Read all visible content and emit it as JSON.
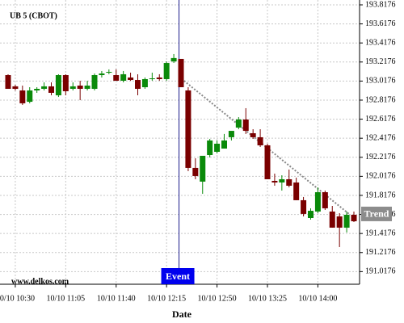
{
  "chart_data": {
    "type": "candlestick",
    "title": "UB 5 (CBOT)",
    "watermark": "www.delkos.com",
    "x_label": "Date",
    "categories": [
      null,
      "10/10 10:30",
      null,
      null,
      null,
      null,
      null,
      null,
      "10/10 11:05",
      null,
      null,
      null,
      null,
      null,
      null,
      "10/10 11:40",
      null,
      null,
      null,
      null,
      null,
      null,
      "10/10 12:15",
      null,
      null,
      null,
      null,
      null,
      null,
      "10/10 12:50",
      null,
      null,
      null,
      null,
      null,
      null,
      "10/10 13:25",
      null,
      null,
      null,
      null,
      null,
      null,
      "10/10 14:00",
      null,
      null,
      null,
      null,
      null
    ],
    "open": [
      193.08,
      192.962,
      192.919,
      192.8,
      192.919,
      192.936,
      192.962,
      192.868,
      193.08,
      192.936,
      192.97,
      192.936,
      192.936,
      193.08,
      193.106,
      193.08,
      193.021,
      193.055,
      193.029,
      192.953,
      193.038,
      193.055,
      193.038,
      193.224,
      193.25,
      192.919,
      192.106,
      191.962,
      192.241,
      192.275,
      192.309,
      192.428,
      192.529,
      192.614,
      192.47,
      192.428,
      192.343,
      191.97,
      191.953,
      191.987,
      191.953,
      191.767,
      191.58,
      191.648,
      191.851,
      191.648,
      191.597,
      191.479,
      191.614
    ],
    "high": [
      193.089,
      192.978,
      192.97,
      192.953,
      192.953,
      193.004,
      193.004,
      193.089,
      193.089,
      193.004,
      193.021,
      193.021,
      193.097,
      193.123,
      193.14,
      193.14,
      193.123,
      193.106,
      193.089,
      193.055,
      193.106,
      193.089,
      193.224,
      193.301,
      193.25,
      192.953,
      192.207,
      192.207,
      192.411,
      192.394,
      192.462,
      192.478,
      192.639,
      192.733,
      192.512,
      192.512,
      192.36,
      192.046,
      192.029,
      192.089,
      192.004,
      191.801,
      191.682,
      191.902,
      191.868,
      191.707,
      191.631,
      191.648,
      191.648
    ],
    "low": [
      192.936,
      192.919,
      192.767,
      192.784,
      192.894,
      192.919,
      192.868,
      192.851,
      192.868,
      192.919,
      192.817,
      192.919,
      192.919,
      193.055,
      193.089,
      193.021,
      193.004,
      193.021,
      192.868,
      192.936,
      193.021,
      193.021,
      193.021,
      193.207,
      192.953,
      192.072,
      191.987,
      191.834,
      192.216,
      192.258,
      192.309,
      192.394,
      192.512,
      192.462,
      192.411,
      192.326,
      192.004,
      191.919,
      191.868,
      191.902,
      191.767,
      191.597,
      191.563,
      191.631,
      191.665,
      191.479,
      191.275,
      191.428,
      191.538
    ],
    "close": [
      192.936,
      192.936,
      192.784,
      192.919,
      192.936,
      192.962,
      192.894,
      193.08,
      192.911,
      192.962,
      192.936,
      192.97,
      193.08,
      193.097,
      193.114,
      193.021,
      193.089,
      193.029,
      192.936,
      193.038,
      193.046,
      193.038,
      193.207,
      193.259,
      192.953,
      192.106,
      192.021,
      192.233,
      192.394,
      192.36,
      192.394,
      192.495,
      192.614,
      192.495,
      192.428,
      192.343,
      191.987,
      191.953,
      191.987,
      191.919,
      191.767,
      191.623,
      191.656,
      191.851,
      191.682,
      191.479,
      191.479,
      191.614,
      191.546
    ],
    "up_color": "#0a8a0a",
    "down_color": "#7a0000",
    "ylim": [
      190.885,
      193.843
    ],
    "yticks": [
      191.0176,
      191.2176,
      191.4176,
      191.6176,
      191.8176,
      192.0176,
      192.2176,
      192.4176,
      192.6176,
      192.8176,
      193.0176,
      193.2176,
      193.4176,
      193.6176,
      193.8176
    ],
    "grid": true,
    "event": {
      "label": "Event"
    },
    "trend": {
      "label": "Trend",
      "values": [
        193.063,
        191.623
      ]
    }
  }
}
